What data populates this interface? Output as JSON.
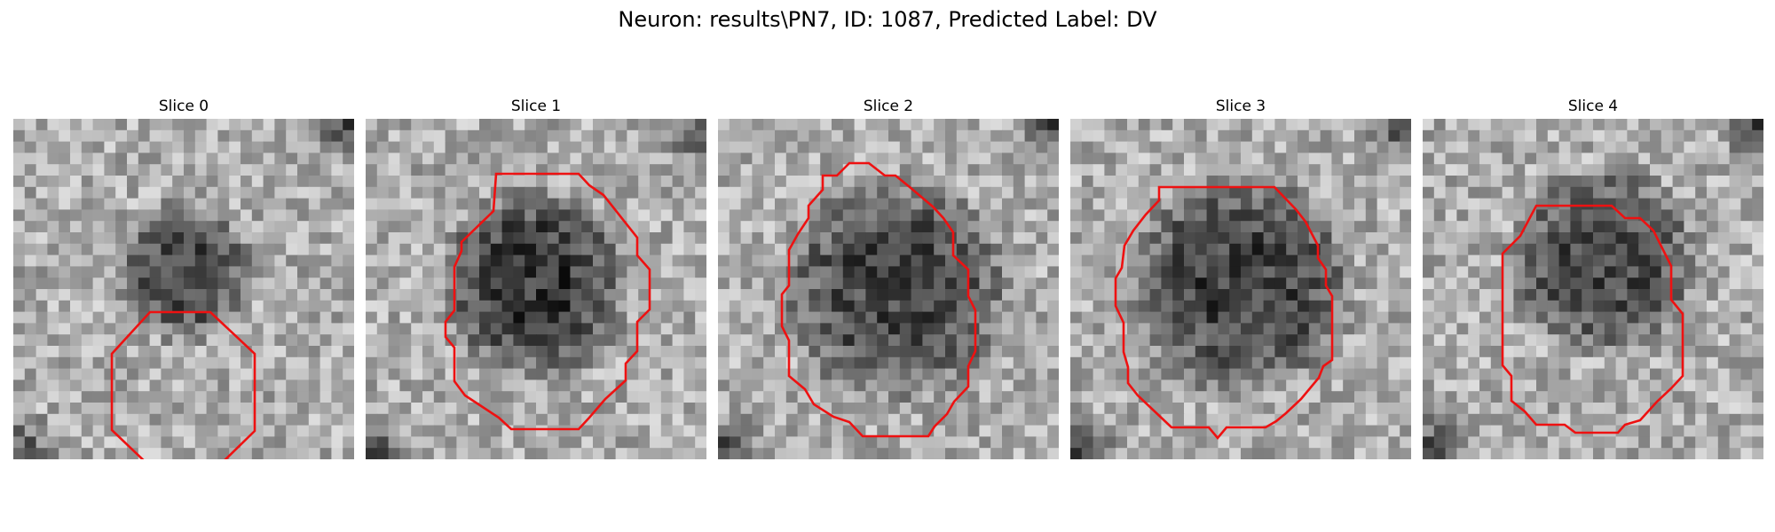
{
  "figure": {
    "title": "Neuron: results\\PN7, ID: 1087, Predicted Label: DV",
    "contour_color": "#ee1111"
  },
  "panels": [
    {
      "title": "Slice 0",
      "contour": "x1 stroke",
      "cell_center": [
        0.5,
        0.45
      ],
      "cell_radius": 0.22,
      "cell_darkness": 0.55
    },
    {
      "title": "Slice 1",
      "contour": "x1 stroke",
      "cell_center": [
        0.5,
        0.48
      ],
      "cell_radius": 0.3,
      "cell_darkness": 0.62
    },
    {
      "title": "Slice 2",
      "contour": "x1 stroke",
      "cell_center": [
        0.52,
        0.5
      ],
      "cell_radius": 0.36,
      "cell_darkness": 0.55
    },
    {
      "title": "Slice 3",
      "contour": "x1 stroke",
      "cell_center": [
        0.5,
        0.48
      ],
      "cell_radius": 0.36,
      "cell_darkness": 0.58
    },
    {
      "title": "Slice 4",
      "contour": "x1 stroke",
      "cell_center": [
        0.53,
        0.42
      ],
      "cell_radius": 0.3,
      "cell_darkness": 0.55
    }
  ]
}
